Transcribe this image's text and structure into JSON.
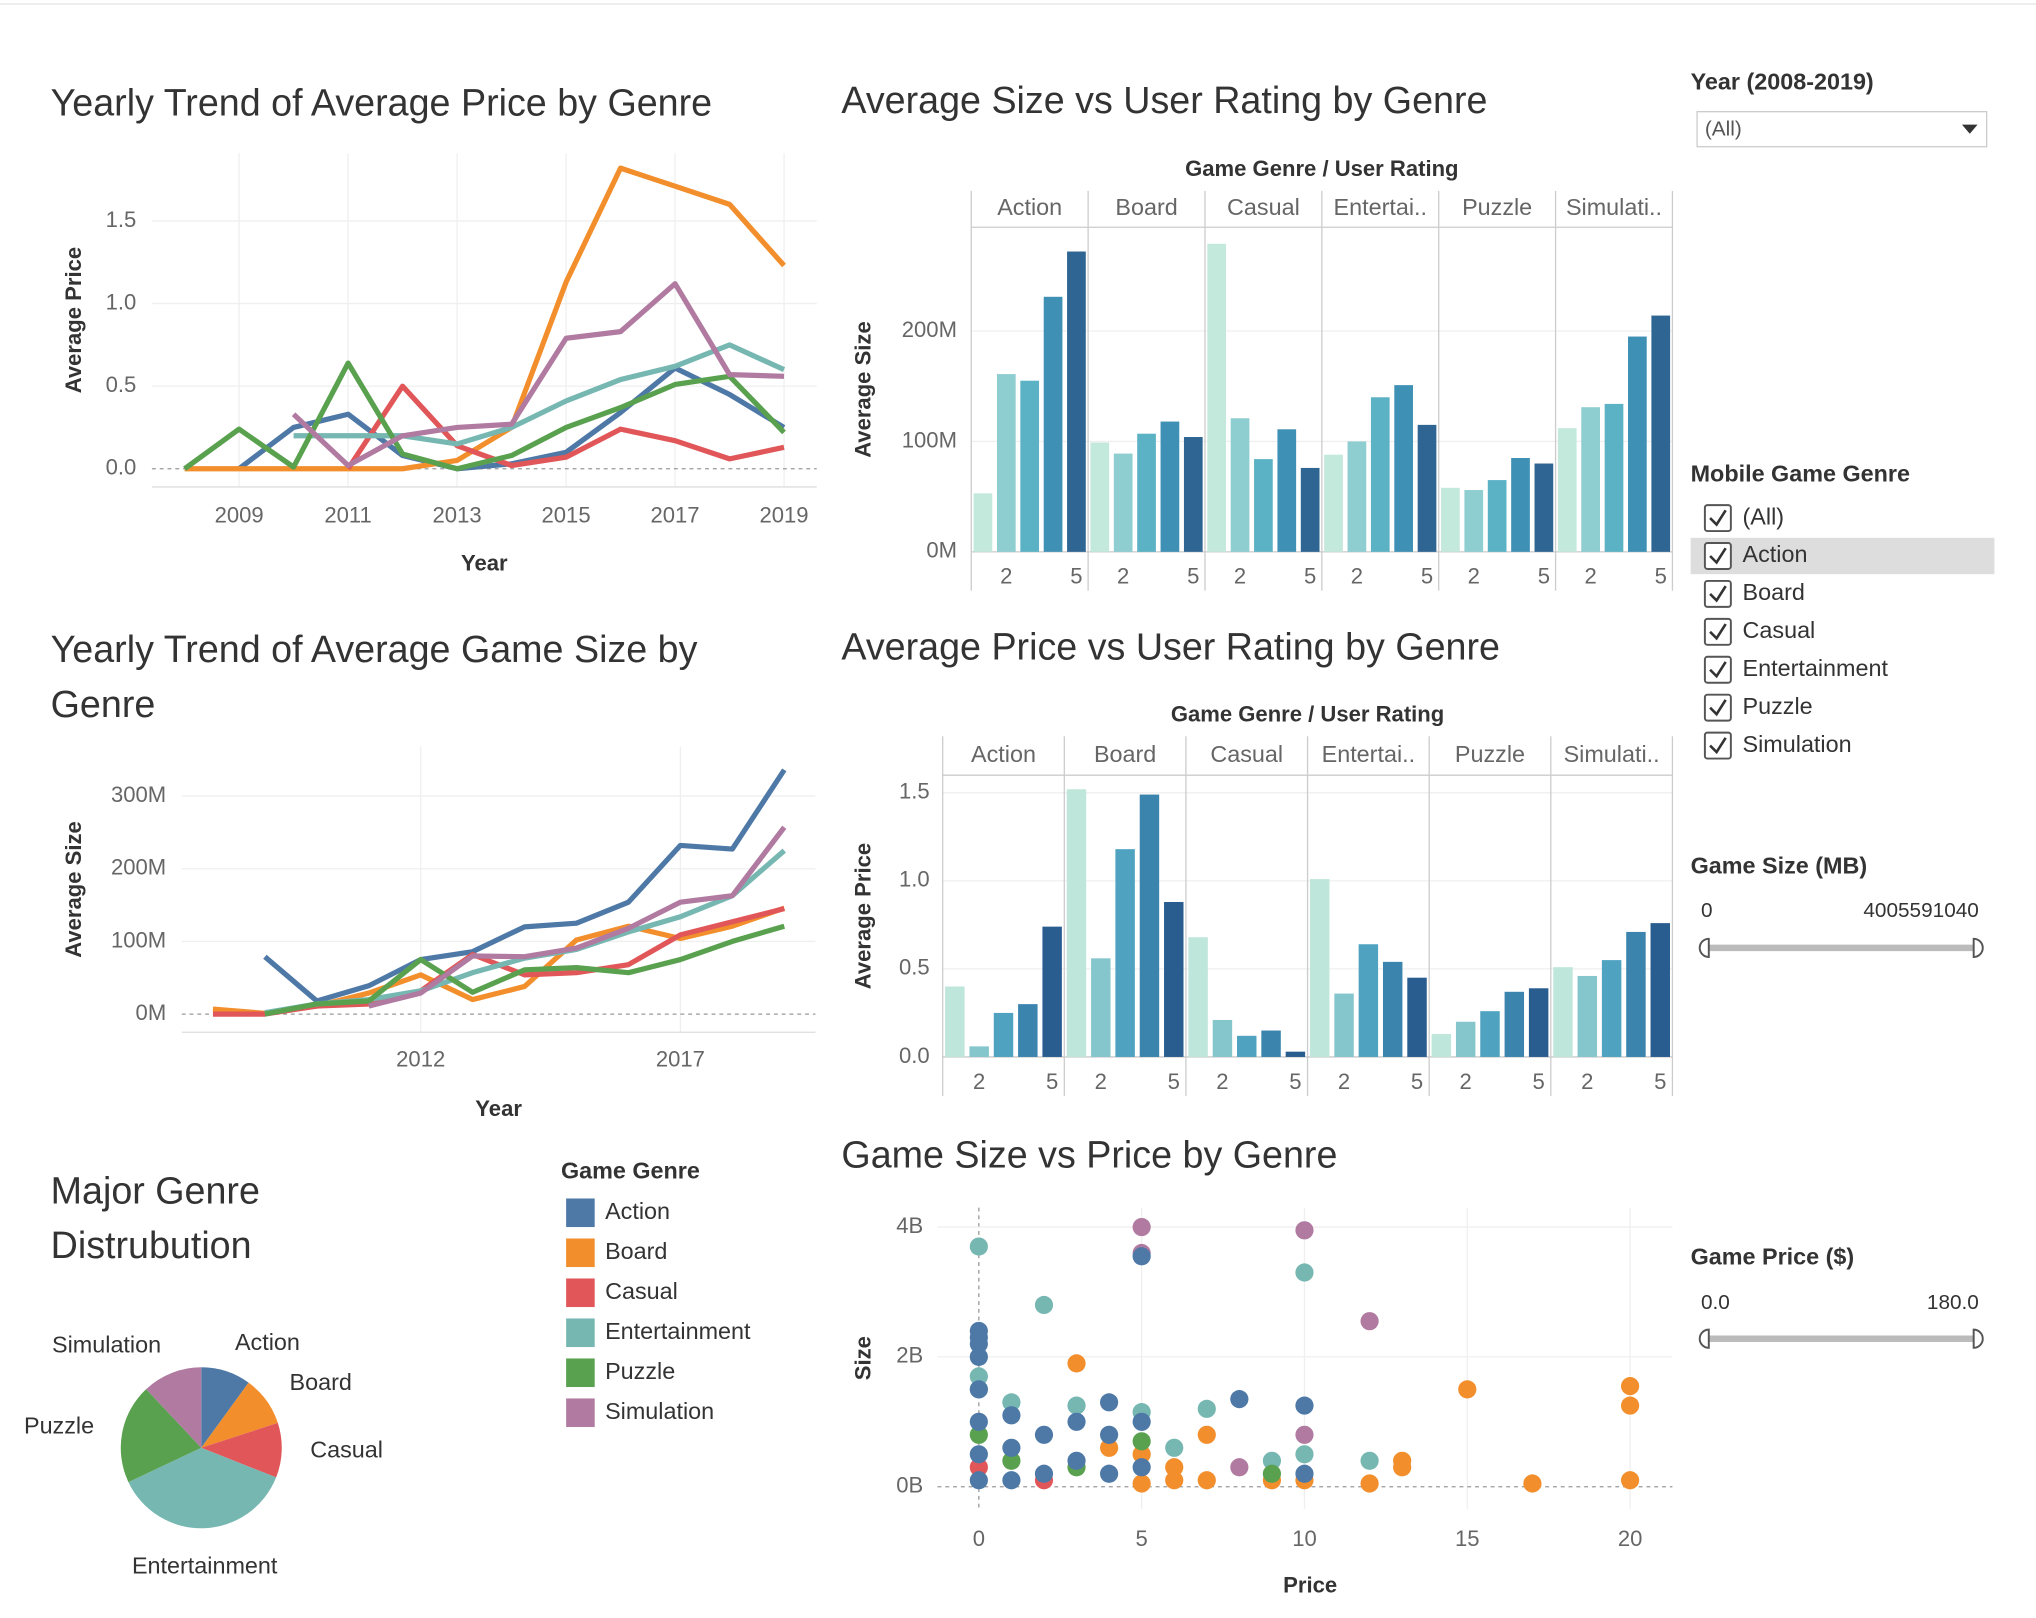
{
  "chart_data": [
    {
      "type": "line",
      "title": "Yearly Trend of Average Price by Genre",
      "x_label": "Year",
      "y_label": "Average Price",
      "legend_title": "Game Genre",
      "x": [
        2008,
        2009,
        2010,
        2011,
        2012,
        2013,
        2014,
        2015,
        2016,
        2017,
        2018,
        2019
      ],
      "xlim": [
        2007.4,
        2019.6
      ],
      "xticks": [
        2009,
        2011,
        2013,
        2015,
        2017,
        2019
      ],
      "ylim": [
        -0.11,
        1.91
      ],
      "yticks": [
        {
          "value": 0,
          "label": "0.0"
        },
        0.5,
        {
          "value": 1,
          "label": "1.0"
        },
        1.5
      ],
      "series": [
        {
          "name": "Action",
          "color": "#4e79a7",
          "values": [
            null,
            0,
            0.25,
            0.33,
            0.08,
            0,
            0.03,
            0.1,
            0.34,
            0.61,
            0.45,
            0.25
          ]
        },
        {
          "name": "Board",
          "color": "#f28e2b",
          "values": [
            0,
            0,
            0,
            0,
            0,
            0.05,
            0.25,
            1.13,
            1.82,
            1.71,
            1.6,
            1.23
          ]
        },
        {
          "name": "Casual",
          "color": "#e15759",
          "values": [
            null,
            null,
            null,
            0,
            0.5,
            0.14,
            0.02,
            0.07,
            0.24,
            0.17,
            0.06,
            0.13
          ]
        },
        {
          "name": "Entertainment",
          "color": "#76b7b2",
          "values": [
            null,
            null,
            0.2,
            0.2,
            0.2,
            0.15,
            0.25,
            0.41,
            0.54,
            0.62,
            0.75,
            0.6
          ]
        },
        {
          "name": "Puzzle",
          "color": "#59a14f",
          "values": [
            0,
            0.24,
            0.01,
            0.64,
            0.09,
            0,
            0.08,
            0.25,
            0.37,
            0.51,
            0.56,
            0.22
          ]
        },
        {
          "name": "Simulation",
          "color": "#b07aa1",
          "values": [
            null,
            null,
            0.33,
            0.02,
            0.2,
            0.25,
            0.27,
            0.79,
            0.83,
            1.12,
            0.57,
            0.56
          ]
        }
      ]
    },
    {
      "type": "line",
      "title": "Yearly Trend of Average Game Size by Genre",
      "x_label": "Year",
      "y_label": "Average Size",
      "x": [
        2008,
        2009,
        2010,
        2011,
        2012,
        2013,
        2014,
        2015,
        2016,
        2017,
        2018,
        2019
      ],
      "xlim": [
        2007.4,
        2019.6
      ],
      "xticks": [
        2012,
        2017
      ],
      "ylim": [
        -25000000,
        368000000
      ],
      "yticks": [
        {
          "value": 0,
          "label": "0M"
        },
        {
          "value": 100000000,
          "label": "100M"
        },
        {
          "value": 200000000,
          "label": "200M"
        },
        {
          "value": 300000000,
          "label": "300M"
        }
      ],
      "series": [
        {
          "color": "#4e79a7",
          "values": [
            null,
            79000000,
            18000000,
            39000000,
            75000000,
            86000000,
            120000000,
            125000000,
            154000000,
            232000000,
            227000000,
            336000000
          ]
        },
        {
          "color": "#f28e2b",
          "values": [
            7000000,
            1000000,
            11000000,
            29000000,
            54000000,
            20000000,
            38000000,
            102000000,
            121000000,
            104000000,
            121000000,
            146000000
          ]
        },
        {
          "color": "#e15759",
          "values": [
            0,
            0,
            11000000,
            14000000,
            32000000,
            82000000,
            54000000,
            57000000,
            68000000,
            109000000,
            127000000,
            145000000
          ]
        },
        {
          "color": "#76b7b2",
          "values": [
            null,
            2000000,
            14000000,
            20000000,
            32000000,
            57000000,
            77000000,
            89000000,
            113000000,
            134000000,
            163000000,
            225000000
          ]
        },
        {
          "color": "#59a14f",
          "values": [
            null,
            0,
            14000000,
            18000000,
            75000000,
            30000000,
            61000000,
            64000000,
            57000000,
            75000000,
            100000000,
            121000000
          ]
        },
        {
          "color": "#b07aa1",
          "values": [
            null,
            null,
            null,
            11000000,
            29000000,
            80000000,
            79000000,
            91000000,
            118000000,
            154000000,
            163000000,
            257000000
          ]
        }
      ]
    },
    {
      "type": "pie",
      "title": "Major Genre Distrubution",
      "categories": [
        "Action",
        "Board",
        "Casual",
        "Entertainment",
        "Puzzle",
        "Simulation"
      ],
      "values": [
        10,
        10,
        11,
        37,
        20,
        12
      ],
      "colors": [
        "#4e79a7",
        "#f28e2b",
        "#e15759",
        "#76b7b2",
        "#59a14f",
        "#b07aa1"
      ]
    },
    {
      "type": "facet-bar",
      "title": "Average Size vs User Rating by Genre",
      "header": "Game Genre  /  User Rating",
      "y_label": "Average Size",
      "x": [
        1,
        2,
        3,
        4,
        5
      ],
      "xlim": [
        0.5,
        5.5
      ],
      "xticks": [
        2,
        5
      ],
      "ylim": [
        0,
        294000000
      ],
      "yticks": [
        {
          "value": 0,
          "label": "0M"
        },
        {
          "value": 100000000,
          "label": "100M"
        },
        {
          "value": 200000000,
          "label": "200M"
        }
      ],
      "colors": [
        "#c3e8dc",
        "#8ecdd0",
        "#5cb2c5",
        "#3f90b5",
        "#2e6592"
      ],
      "series": [
        {
          "name": "Action",
          "values": [
            53000000,
            161000000,
            155000000,
            231000000,
            272000000
          ]
        },
        {
          "name": "Board",
          "values": [
            99000000,
            89000000,
            107000000,
            118000000,
            104000000
          ]
        },
        {
          "name": "Casual",
          "values": [
            279000000,
            121000000,
            84000000,
            111000000,
            76000000
          ]
        },
        {
          "name": "Entertai..",
          "values": [
            88000000,
            100000000,
            140000000,
            151000000,
            115000000
          ]
        },
        {
          "name": "Puzzle",
          "values": [
            58000000,
            56000000,
            65000000,
            85000000,
            80000000
          ]
        },
        {
          "name": "Simulati..",
          "values": [
            112000000,
            131000000,
            134000000,
            195000000,
            214000000
          ]
        }
      ]
    },
    {
      "type": "facet-bar",
      "title": "Average Price vs User Rating by Genre",
      "header": "Game Genre  /  User Rating",
      "y_label": "Average Price",
      "x": [
        1,
        2,
        3,
        4,
        5
      ],
      "xlim": [
        0.5,
        5.5
      ],
      "xticks": [
        2,
        5
      ],
      "ylim": [
        0,
        1.6
      ],
      "yticks": [
        {
          "value": 0,
          "label": "0.0"
        },
        0.5,
        {
          "value": 1,
          "label": "1.0"
        },
        1.5
      ],
      "colors": [
        "#bfe6da",
        "#84c6cc",
        "#4fa3c0",
        "#3a84ad",
        "#2a5d8f"
      ],
      "series": [
        {
          "name": "Action",
          "values": [
            0.4,
            0.06,
            0.25,
            0.3,
            0.74
          ]
        },
        {
          "name": "Board",
          "values": [
            1.52,
            0.56,
            1.18,
            1.49,
            0.88
          ]
        },
        {
          "name": "Casual",
          "values": [
            0.68,
            0.21,
            0.12,
            0.15,
            0.03
          ]
        },
        {
          "name": "Entertai..",
          "values": [
            1.01,
            0.36,
            0.64,
            0.54,
            0.45
          ]
        },
        {
          "name": "Puzzle",
          "values": [
            0.13,
            0.2,
            0.26,
            0.37,
            0.39
          ]
        },
        {
          "name": "Simulati..",
          "values": [
            0.51,
            0.46,
            0.55,
            0.71,
            0.76
          ]
        }
      ]
    },
    {
      "type": "scatter",
      "title": "Game Size vs Price by Genre",
      "x_label": "Price",
      "y_label": "Size",
      "xlim": [
        -1.27,
        21.3
      ],
      "xticks": [
        0,
        5,
        10,
        15,
        20
      ],
      "ylim": [
        -340000000,
        4300000000
      ],
      "yticks": [
        {
          "value": 0,
          "label": "0B"
        },
        {
          "value": 2000000000,
          "label": "2B"
        },
        {
          "value": 4000000000,
          "label": "4B"
        }
      ],
      "series": [
        {
          "color": "#f28e2b",
          "x": [
            3,
            4,
            5,
            5,
            6,
            6,
            7,
            7,
            9,
            10,
            12,
            13,
            13,
            15,
            17,
            20,
            20,
            20
          ],
          "values": [
            1900000000,
            600000000,
            500000000,
            50000000,
            300000000,
            100000000,
            800000000,
            100000000,
            100000000,
            100000000,
            50000000,
            400000000,
            300000000,
            1500000000,
            50000000,
            1550000000,
            1250000000,
            100000000
          ]
        },
        {
          "color": "#e15759",
          "x": [
            0,
            2
          ],
          "values": [
            300000000,
            100000000
          ]
        },
        {
          "color": "#76b7b2",
          "x": [
            0,
            0,
            0,
            1,
            2,
            3,
            5,
            6,
            7,
            9,
            10,
            10,
            12
          ],
          "values": [
            3700000000,
            1700000000,
            1500000000,
            1300000000,
            2800000000,
            1250000000,
            1150000000,
            600000000,
            1200000000,
            400000000,
            3300000000,
            500000000,
            400000000
          ]
        },
        {
          "color": "#59a14f",
          "x": [
            0,
            1,
            3,
            5,
            9
          ],
          "values": [
            800000000,
            400000000,
            300000000,
            700000000,
            200000000
          ]
        },
        {
          "color": "#b07aa1",
          "x": [
            5,
            5,
            10,
            12,
            8,
            10
          ],
          "values": [
            4000000000,
            3600000000,
            3950000000,
            2550000000,
            300000000,
            800000000
          ]
        },
        {
          "color": "#4e79a7",
          "x": [
            0,
            0,
            0,
            0,
            0,
            0,
            0,
            0,
            1,
            1,
            1,
            2,
            2,
            3,
            3,
            4,
            4,
            4,
            5,
            5,
            5,
            8,
            10,
            10
          ],
          "values": [
            2400000000,
            2300000000,
            2200000000,
            2000000000,
            1500000000,
            1000000000,
            500000000,
            100000000,
            1100000000,
            600000000,
            100000000,
            800000000,
            200000000,
            1000000000,
            400000000,
            1300000000,
            800000000,
            200000000,
            3550000000,
            1000000000,
            300000000,
            1350000000,
            1250000000,
            200000000
          ]
        }
      ]
    }
  ],
  "filters": {
    "year": {
      "title": "Year (2008-2019)",
      "value": "(All)"
    },
    "genre": {
      "title": "Mobile Game Genre",
      "options": [
        "(All)",
        "Action",
        "Board",
        "Casual",
        "Entertainment",
        "Puzzle",
        "Simulation"
      ]
    },
    "size": {
      "title": "Game Size (MB)",
      "min": 0,
      "max": 4005591040
    },
    "price": {
      "title": "Game Price ($)",
      "min": "0.0",
      "max": "180.0"
    }
  }
}
